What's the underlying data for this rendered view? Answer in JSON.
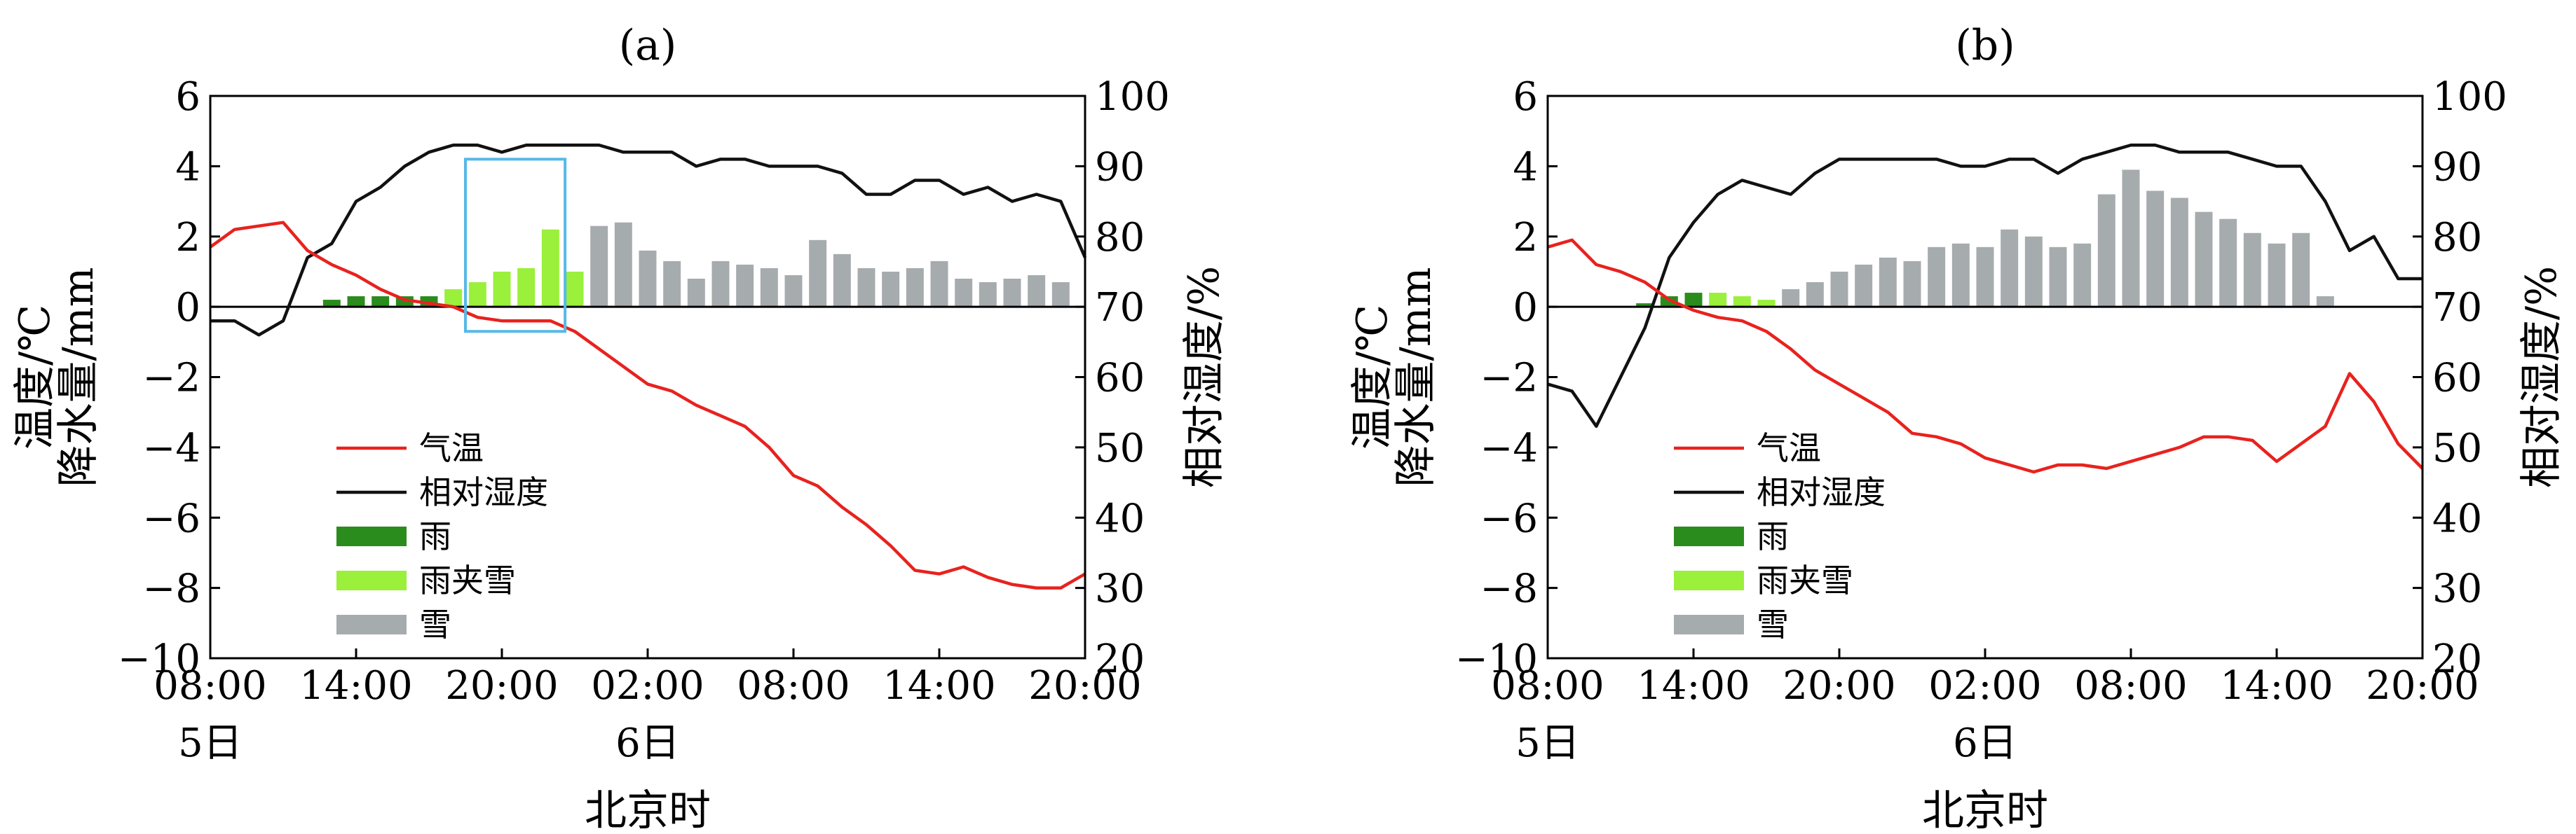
{
  "colors": {
    "temperature": "#e8221e",
    "humidity": "#111111",
    "rain": "#2a8c1c",
    "sleet": "#9af03a",
    "snow": "#a6abae",
    "highlight_box": "#56b8e6"
  },
  "chart_data": [
    {
      "type": "bar",
      "title": "(a)",
      "xlabel": "北京时",
      "ylabel_left_line1": "温度/℃",
      "ylabel_left_line2": "降水量/mm",
      "ylabel_right": "相对湿度/%",
      "x_ticks": [
        0,
        6,
        12,
        18,
        24,
        30,
        36
      ],
      "x_tick_labels": [
        "08:00",
        "14:00",
        "20:00",
        "02:00",
        "08:00",
        "14:00",
        "20:00"
      ],
      "date_labels": [
        {
          "x": 0,
          "text": "5日"
        },
        {
          "x": 18,
          "text": "6日"
        }
      ],
      "xlim": [
        0,
        36
      ],
      "ylim_left": [
        -10,
        6
      ],
      "yticks_left": [
        -10,
        -8,
        -6,
        -4,
        -2,
        0,
        2,
        4,
        6
      ],
      "ylim_right": [
        20,
        100
      ],
      "yticks_right": [
        20,
        30,
        40,
        50,
        60,
        70,
        80,
        90,
        100
      ],
      "legend": [
        "气温",
        "相对湿度",
        "雨",
        "雨夹雪",
        "雪"
      ],
      "legend_position": "lower-left",
      "highlight_box": {
        "x_from": 10.5,
        "x_to": 14.6,
        "y_from": -0.7,
        "y_to": 4.2
      },
      "temperature": [
        [
          0,
          1.7
        ],
        [
          1,
          2.2
        ],
        [
          2,
          2.3
        ],
        [
          3,
          2.4
        ],
        [
          4,
          1.6
        ],
        [
          5,
          1.2
        ],
        [
          6,
          0.9
        ],
        [
          7,
          0.5
        ],
        [
          8,
          0.2
        ],
        [
          9,
          0.1
        ],
        [
          10,
          0.0
        ],
        [
          11,
          -0.3
        ],
        [
          12,
          -0.4
        ],
        [
          13,
          -0.4
        ],
        [
          14,
          -0.4
        ],
        [
          15,
          -0.7
        ],
        [
          16,
          -1.2
        ],
        [
          17,
          -1.7
        ],
        [
          18,
          -2.2
        ],
        [
          19,
          -2.4
        ],
        [
          20,
          -2.8
        ],
        [
          21,
          -3.1
        ],
        [
          22,
          -3.4
        ],
        [
          23,
          -4.0
        ],
        [
          24,
          -4.8
        ],
        [
          25,
          -5.1
        ],
        [
          26,
          -5.7
        ],
        [
          27,
          -6.2
        ],
        [
          28,
          -6.8
        ],
        [
          29,
          -7.5
        ],
        [
          30,
          -7.6
        ],
        [
          31,
          -7.4
        ],
        [
          32,
          -7.7
        ],
        [
          33,
          -7.9
        ],
        [
          34,
          -8.0
        ],
        [
          35,
          -8.0
        ],
        [
          36,
          -7.6
        ]
      ],
      "humidity": [
        [
          0,
          68
        ],
        [
          1,
          68
        ],
        [
          2,
          66
        ],
        [
          3,
          68
        ],
        [
          4,
          77
        ],
        [
          5,
          79
        ],
        [
          6,
          85
        ],
        [
          7,
          87
        ],
        [
          8,
          90
        ],
        [
          9,
          92
        ],
        [
          10,
          93
        ],
        [
          11,
          93
        ],
        [
          12,
          92
        ],
        [
          13,
          93
        ],
        [
          14,
          93
        ],
        [
          15,
          93
        ],
        [
          16,
          93
        ],
        [
          17,
          92
        ],
        [
          18,
          92
        ],
        [
          19,
          92
        ],
        [
          20,
          90
        ],
        [
          21,
          91
        ],
        [
          22,
          91
        ],
        [
          23,
          90
        ],
        [
          24,
          90
        ],
        [
          25,
          90
        ],
        [
          26,
          89
        ],
        [
          27,
          86
        ],
        [
          28,
          86
        ],
        [
          29,
          88
        ],
        [
          30,
          88
        ],
        [
          31,
          86
        ],
        [
          32,
          87
        ],
        [
          33,
          85
        ],
        [
          34,
          86
        ],
        [
          35,
          85
        ],
        [
          36,
          77
        ]
      ],
      "precipitation": [
        {
          "x": 5,
          "value": 0.2,
          "type": "rain"
        },
        {
          "x": 6,
          "value": 0.3,
          "type": "rain"
        },
        {
          "x": 7,
          "value": 0.3,
          "type": "rain"
        },
        {
          "x": 8,
          "value": 0.3,
          "type": "rain"
        },
        {
          "x": 9,
          "value": 0.3,
          "type": "rain"
        },
        {
          "x": 10,
          "value": 0.5,
          "type": "sleet"
        },
        {
          "x": 11,
          "value": 0.7,
          "type": "sleet"
        },
        {
          "x": 12,
          "value": 1.0,
          "type": "sleet"
        },
        {
          "x": 13,
          "value": 1.1,
          "type": "sleet"
        },
        {
          "x": 14,
          "value": 2.2,
          "type": "sleet"
        },
        {
          "x": 15,
          "value": 1.0,
          "type": "sleet"
        },
        {
          "x": 16,
          "value": 2.3,
          "type": "snow"
        },
        {
          "x": 17,
          "value": 2.4,
          "type": "snow"
        },
        {
          "x": 18,
          "value": 1.6,
          "type": "snow"
        },
        {
          "x": 19,
          "value": 1.3,
          "type": "snow"
        },
        {
          "x": 20,
          "value": 0.8,
          "type": "snow"
        },
        {
          "x": 21,
          "value": 1.3,
          "type": "snow"
        },
        {
          "x": 22,
          "value": 1.2,
          "type": "snow"
        },
        {
          "x": 23,
          "value": 1.1,
          "type": "snow"
        },
        {
          "x": 24,
          "value": 0.9,
          "type": "snow"
        },
        {
          "x": 25,
          "value": 1.9,
          "type": "snow"
        },
        {
          "x": 26,
          "value": 1.5,
          "type": "snow"
        },
        {
          "x": 27,
          "value": 1.1,
          "type": "snow"
        },
        {
          "x": 28,
          "value": 1.0,
          "type": "snow"
        },
        {
          "x": 29,
          "value": 1.1,
          "type": "snow"
        },
        {
          "x": 30,
          "value": 1.3,
          "type": "snow"
        },
        {
          "x": 31,
          "value": 0.8,
          "type": "snow"
        },
        {
          "x": 32,
          "value": 0.7,
          "type": "snow"
        },
        {
          "x": 33,
          "value": 0.8,
          "type": "snow"
        },
        {
          "x": 34,
          "value": 0.9,
          "type": "snow"
        },
        {
          "x": 35,
          "value": 0.7,
          "type": "snow"
        }
      ]
    },
    {
      "type": "bar",
      "title": "(b)",
      "xlabel": "北京时",
      "ylabel_left_line1": "温度/℃",
      "ylabel_left_line2": "降水量/mm",
      "ylabel_right": "相对湿度/%",
      "x_ticks": [
        0,
        6,
        12,
        18,
        24,
        30,
        36
      ],
      "x_tick_labels": [
        "08:00",
        "14:00",
        "20:00",
        "02:00",
        "08:00",
        "14:00",
        "20:00"
      ],
      "date_labels": [
        {
          "x": 0,
          "text": "5日"
        },
        {
          "x": 18,
          "text": "6日"
        }
      ],
      "xlim": [
        0,
        36
      ],
      "ylim_left": [
        -10,
        6
      ],
      "yticks_left": [
        -10,
        -8,
        -6,
        -4,
        -2,
        0,
        2,
        4,
        6
      ],
      "ylim_right": [
        20,
        100
      ],
      "yticks_right": [
        20,
        30,
        40,
        50,
        60,
        70,
        80,
        90,
        100
      ],
      "legend": [
        "气温",
        "相对湿度",
        "雨",
        "雨夹雪",
        "雪"
      ],
      "legend_position": "lower-left",
      "temperature": [
        [
          0,
          1.7
        ],
        [
          1,
          1.9
        ],
        [
          2,
          1.2
        ],
        [
          3,
          1.0
        ],
        [
          4,
          0.7
        ],
        [
          5,
          0.2
        ],
        [
          6,
          -0.1
        ],
        [
          7,
          -0.3
        ],
        [
          8,
          -0.4
        ],
        [
          9,
          -0.7
        ],
        [
          10,
          -1.2
        ],
        [
          11,
          -1.8
        ],
        [
          12,
          -2.2
        ],
        [
          13,
          -2.6
        ],
        [
          14,
          -3.0
        ],
        [
          15,
          -3.6
        ],
        [
          16,
          -3.7
        ],
        [
          17,
          -3.9
        ],
        [
          18,
          -4.3
        ],
        [
          19,
          -4.5
        ],
        [
          20,
          -4.7
        ],
        [
          21,
          -4.5
        ],
        [
          22,
          -4.5
        ],
        [
          23,
          -4.6
        ],
        [
          24,
          -4.4
        ],
        [
          25,
          -4.2
        ],
        [
          26,
          -4.0
        ],
        [
          27,
          -3.7
        ],
        [
          28,
          -3.7
        ],
        [
          29,
          -3.8
        ],
        [
          30,
          -4.4
        ],
        [
          31,
          -3.9
        ],
        [
          32,
          -3.4
        ],
        [
          33,
          -1.9
        ],
        [
          34,
          -2.7
        ],
        [
          35,
          -3.9
        ],
        [
          36,
          -4.6
        ]
      ],
      "humidity": [
        [
          0,
          59
        ],
        [
          1,
          58
        ],
        [
          2,
          53
        ],
        [
          3,
          60
        ],
        [
          4,
          67
        ],
        [
          5,
          77
        ],
        [
          6,
          82
        ],
        [
          7,
          86
        ],
        [
          8,
          88
        ],
        [
          9,
          87
        ],
        [
          10,
          86
        ],
        [
          11,
          89
        ],
        [
          12,
          91
        ],
        [
          13,
          91
        ],
        [
          14,
          91
        ],
        [
          15,
          91
        ],
        [
          16,
          91
        ],
        [
          17,
          90
        ],
        [
          18,
          90
        ],
        [
          19,
          91
        ],
        [
          20,
          91
        ],
        [
          21,
          89
        ],
        [
          22,
          91
        ],
        [
          23,
          92
        ],
        [
          24,
          93
        ],
        [
          25,
          93
        ],
        [
          26,
          92
        ],
        [
          27,
          92
        ],
        [
          28,
          92
        ],
        [
          29,
          91
        ],
        [
          30,
          90
        ],
        [
          31,
          90
        ],
        [
          32,
          85
        ],
        [
          33,
          78
        ],
        [
          34,
          80
        ],
        [
          35,
          74
        ],
        [
          36,
          74
        ]
      ],
      "precipitation": [
        {
          "x": 4,
          "value": 0.1,
          "type": "rain"
        },
        {
          "x": 5,
          "value": 0.3,
          "type": "rain"
        },
        {
          "x": 6,
          "value": 0.4,
          "type": "rain"
        },
        {
          "x": 7,
          "value": 0.4,
          "type": "sleet"
        },
        {
          "x": 8,
          "value": 0.3,
          "type": "sleet"
        },
        {
          "x": 9,
          "value": 0.2,
          "type": "sleet"
        },
        {
          "x": 10,
          "value": 0.5,
          "type": "snow"
        },
        {
          "x": 11,
          "value": 0.7,
          "type": "snow"
        },
        {
          "x": 12,
          "value": 1.0,
          "type": "snow"
        },
        {
          "x": 13,
          "value": 1.2,
          "type": "snow"
        },
        {
          "x": 14,
          "value": 1.4,
          "type": "snow"
        },
        {
          "x": 15,
          "value": 1.3,
          "type": "snow"
        },
        {
          "x": 16,
          "value": 1.7,
          "type": "snow"
        },
        {
          "x": 17,
          "value": 1.8,
          "type": "snow"
        },
        {
          "x": 18,
          "value": 1.7,
          "type": "snow"
        },
        {
          "x": 19,
          "value": 2.2,
          "type": "snow"
        },
        {
          "x": 20,
          "value": 2.0,
          "type": "snow"
        },
        {
          "x": 21,
          "value": 1.7,
          "type": "snow"
        },
        {
          "x": 22,
          "value": 1.8,
          "type": "snow"
        },
        {
          "x": 23,
          "value": 3.2,
          "type": "snow"
        },
        {
          "x": 24,
          "value": 3.9,
          "type": "snow"
        },
        {
          "x": 25,
          "value": 3.3,
          "type": "snow"
        },
        {
          "x": 26,
          "value": 3.1,
          "type": "snow"
        },
        {
          "x": 27,
          "value": 2.7,
          "type": "snow"
        },
        {
          "x": 28,
          "value": 2.5,
          "type": "snow"
        },
        {
          "x": 29,
          "value": 2.1,
          "type": "snow"
        },
        {
          "x": 30,
          "value": 1.8,
          "type": "snow"
        },
        {
          "x": 31,
          "value": 2.1,
          "type": "snow"
        },
        {
          "x": 32,
          "value": 0.3,
          "type": "snow"
        }
      ]
    }
  ]
}
